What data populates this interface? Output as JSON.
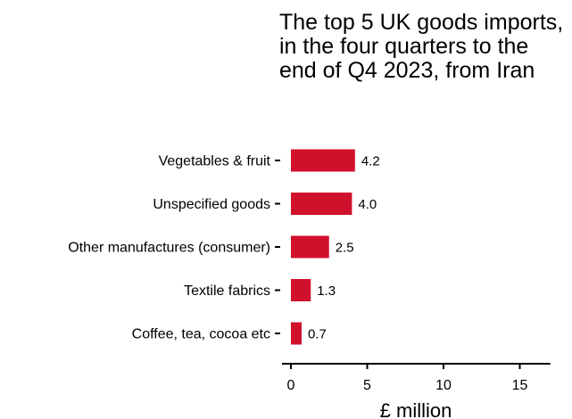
{
  "chart_data": {
    "type": "bar",
    "orientation": "horizontal",
    "title": "The top 5 UK goods imports, in the four quarters to the end of Q4 2023, from Iran",
    "categories": [
      "Vegetables & fruit",
      "Unspecified goods",
      "Other manufactures (consumer)",
      "Textile fabrics",
      "Coffee, tea, cocoa etc"
    ],
    "values": [
      4.2,
      4.0,
      2.5,
      1.3,
      0.7
    ],
    "value_labels": [
      "4.2",
      "4.0",
      "2.5",
      "1.3",
      "0.7"
    ],
    "xlabel": "£ million",
    "ylabel": "",
    "xlim": [
      0,
      17
    ],
    "xticks": [
      0,
      5,
      10,
      15
    ],
    "xtick_labels": [
      "0",
      "5",
      "10",
      "15"
    ],
    "grid": false,
    "legend": "none",
    "bar_color": "#d0112b"
  }
}
